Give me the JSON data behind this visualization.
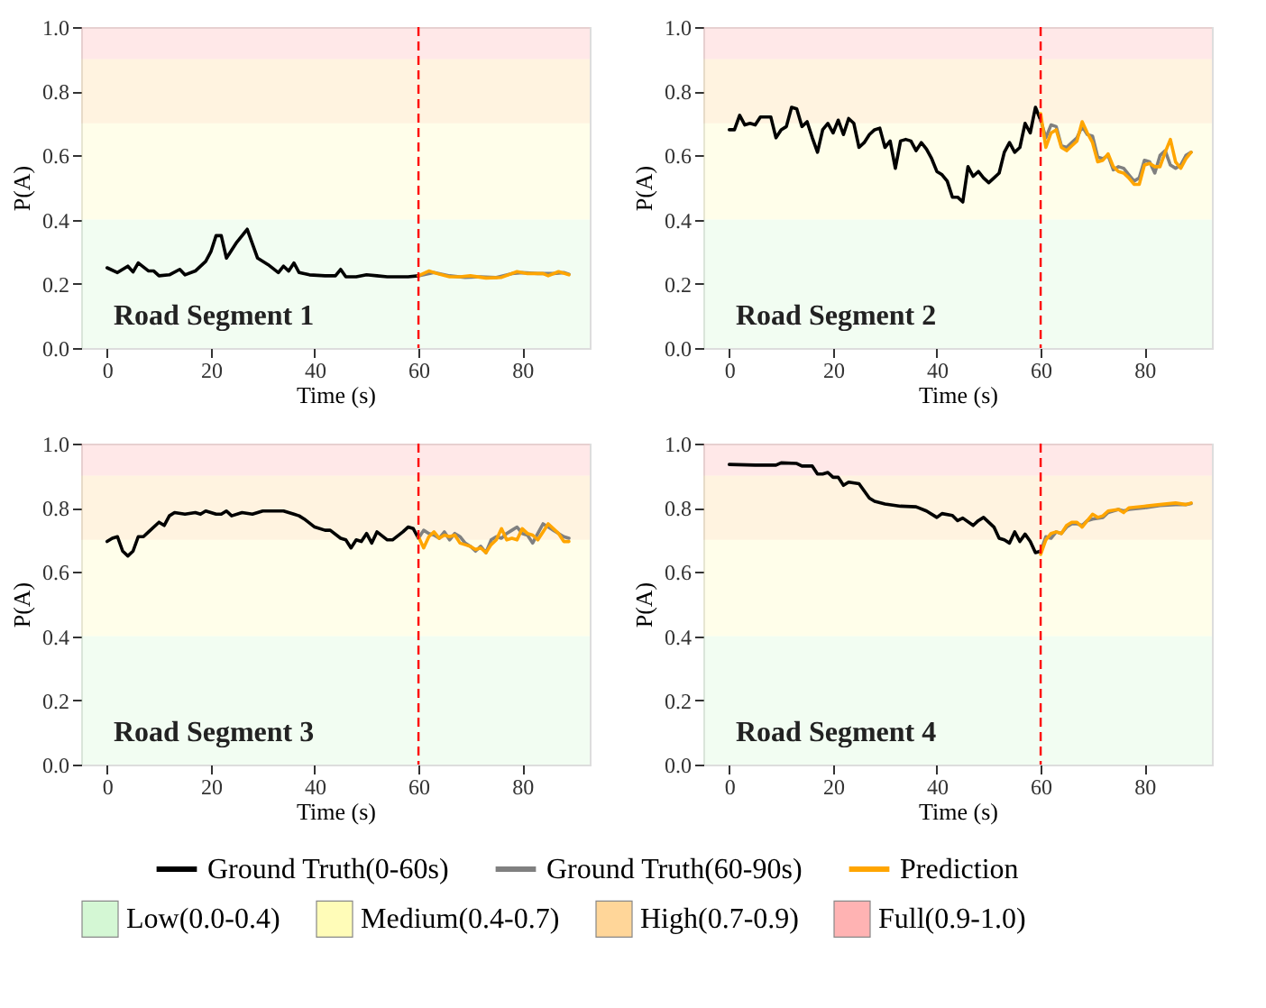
{
  "chart_data": [
    {
      "type": "line",
      "xlabel": "Time (s)",
      "ylabel": "P(A)",
      "annotations": [
        "Road Segment 1"
      ],
      "xlim": [
        -5,
        93
      ],
      "xticks": [
        0,
        20,
        40,
        60,
        80
      ],
      "ylim": [
        0,
        1
      ],
      "yticks": [
        {
          "value": 0,
          "label": "0.0"
        },
        {
          "value": 0.2,
          "label": "0.2"
        },
        {
          "value": 0.4,
          "label": "0.4"
        },
        {
          "value": 0.6,
          "label": "0.6"
        },
        {
          "value": 0.8,
          "label": "0.8"
        },
        {
          "value": 1,
          "label": "1.0"
        }
      ],
      "bands": [
        {
          "axis": "y",
          "from": 0,
          "to": 0.4,
          "color": "#d4f7d4"
        },
        {
          "axis": "y",
          "from": 0.4,
          "to": 0.7,
          "color": "#fffcb8"
        },
        {
          "axis": "y",
          "from": 0.7,
          "to": 0.9,
          "color": "#ffd699"
        },
        {
          "axis": "y",
          "from": 0.9,
          "to": 1,
          "color": "#ffb3b3"
        }
      ],
      "ref_lines": [
        {
          "axis": "x",
          "value": 60,
          "color": "#ff0000",
          "line_style": "dashed"
        }
      ],
      "series": [
        {
          "color": "#000000",
          "x": [
            0,
            2,
            4,
            5,
            6,
            8,
            9,
            10,
            12,
            14,
            15,
            17,
            19,
            20,
            21,
            22,
            23,
            25,
            27,
            29,
            31,
            33,
            34,
            35,
            36,
            37,
            39,
            42,
            44,
            45,
            46,
            48,
            50,
            52,
            54,
            56,
            58,
            60
          ],
          "values": [
            0.25,
            0.235,
            0.255,
            0.237,
            0.265,
            0.24,
            0.24,
            0.225,
            0.228,
            0.245,
            0.228,
            0.24,
            0.27,
            0.3,
            0.35,
            0.35,
            0.28,
            0.33,
            0.37,
            0.28,
            0.26,
            0.235,
            0.255,
            0.24,
            0.265,
            0.235,
            0.228,
            0.225,
            0.225,
            0.245,
            0.222,
            0.222,
            0.228,
            0.225,
            0.222,
            0.222,
            0.222,
            0.225
          ]
        },
        {
          "color": "#808080",
          "x": [
            60,
            63,
            66,
            69,
            72,
            75,
            78,
            80,
            83,
            86,
            88,
            89
          ],
          "values": [
            0.225,
            0.235,
            0.225,
            0.22,
            0.222,
            0.22,
            0.232,
            0.235,
            0.232,
            0.232,
            0.235,
            0.23
          ]
        },
        {
          "color": "#ffa500",
          "x": [
            60,
            62,
            64,
            66,
            68,
            70,
            73,
            76,
            79,
            81,
            84,
            85,
            87,
            89
          ],
          "values": [
            0.225,
            0.24,
            0.23,
            0.222,
            0.222,
            0.225,
            0.218,
            0.22,
            0.238,
            0.232,
            0.232,
            0.225,
            0.238,
            0.228
          ]
        }
      ]
    },
    {
      "type": "line",
      "xlabel": "Time (s)",
      "ylabel": "P(A)",
      "annotations": [
        "Road Segment 2"
      ],
      "xlim": [
        -5,
        93
      ],
      "xticks": [
        0,
        20,
        40,
        60,
        80
      ],
      "ylim": [
        0,
        1
      ],
      "yticks": [
        {
          "value": 0,
          "label": "0.0"
        },
        {
          "value": 0.2,
          "label": "0.2"
        },
        {
          "value": 0.4,
          "label": "0.4"
        },
        {
          "value": 0.6,
          "label": "0.6"
        },
        {
          "value": 0.8,
          "label": "0.8"
        },
        {
          "value": 1,
          "label": "1.0"
        }
      ],
      "bands": [
        {
          "axis": "y",
          "from": 0,
          "to": 0.4,
          "color": "#d4f7d4"
        },
        {
          "axis": "y",
          "from": 0.4,
          "to": 0.7,
          "color": "#fffcb8"
        },
        {
          "axis": "y",
          "from": 0.7,
          "to": 0.9,
          "color": "#ffd699"
        },
        {
          "axis": "y",
          "from": 0.9,
          "to": 1,
          "color": "#ffb3b3"
        }
      ],
      "ref_lines": [
        {
          "axis": "x",
          "value": 60,
          "color": "#ff0000",
          "line_style": "dashed"
        }
      ],
      "series": [
        {
          "color": "#000000",
          "x": [
            0,
            1,
            2,
            3,
            4,
            5,
            6,
            8,
            9,
            10,
            11,
            12,
            13,
            14,
            15,
            16,
            17,
            18,
            19,
            20,
            21,
            22,
            23,
            24,
            25,
            26,
            27,
            28,
            29,
            30,
            31,
            32,
            33,
            34,
            35,
            36,
            37,
            38,
            39,
            40,
            41,
            42,
            43,
            44,
            45,
            46,
            47,
            48,
            49,
            50,
            51,
            52,
            53,
            54,
            55,
            56,
            57,
            58,
            59,
            60
          ],
          "values": [
            0.68,
            0.68,
            0.725,
            0.695,
            0.7,
            0.695,
            0.72,
            0.72,
            0.655,
            0.68,
            0.69,
            0.75,
            0.745,
            0.69,
            0.705,
            0.655,
            0.61,
            0.68,
            0.7,
            0.67,
            0.71,
            0.665,
            0.715,
            0.7,
            0.625,
            0.64,
            0.665,
            0.68,
            0.685,
            0.625,
            0.645,
            0.56,
            0.645,
            0.65,
            0.645,
            0.615,
            0.64,
            0.62,
            0.59,
            0.55,
            0.54,
            0.52,
            0.47,
            0.47,
            0.455,
            0.565,
            0.535,
            0.55,
            0.53,
            0.515,
            0.53,
            0.545,
            0.61,
            0.64,
            0.61,
            0.625,
            0.7,
            0.67,
            0.75,
            0.71
          ]
        },
        {
          "color": "#808080",
          "x": [
            60,
            61,
            62,
            63,
            64,
            65,
            66,
            67,
            68,
            69,
            70,
            71,
            72,
            73,
            74,
            75,
            76,
            77,
            78,
            79,
            80,
            81,
            82,
            83,
            84,
            85,
            86,
            87,
            88,
            89
          ],
          "values": [
            0.71,
            0.655,
            0.695,
            0.69,
            0.63,
            0.625,
            0.64,
            0.655,
            0.69,
            0.665,
            0.66,
            0.595,
            0.59,
            0.6,
            0.555,
            0.565,
            0.56,
            0.54,
            0.52,
            0.53,
            0.585,
            0.58,
            0.545,
            0.6,
            0.615,
            0.57,
            0.56,
            0.57,
            0.6,
            0.61
          ]
        },
        {
          "color": "#ffa500",
          "x": [
            60,
            61,
            62,
            63,
            64,
            65,
            66,
            67,
            68,
            69,
            70,
            71,
            72,
            73,
            74,
            75,
            76,
            77,
            78,
            79,
            80,
            81,
            82,
            83,
            84,
            85,
            86,
            87,
            88,
            89
          ],
          "values": [
            0.73,
            0.625,
            0.67,
            0.68,
            0.625,
            0.615,
            0.63,
            0.645,
            0.705,
            0.67,
            0.64,
            0.58,
            0.585,
            0.605,
            0.565,
            0.55,
            0.545,
            0.53,
            0.51,
            0.51,
            0.57,
            0.575,
            0.565,
            0.565,
            0.61,
            0.65,
            0.58,
            0.56,
            0.59,
            0.61
          ]
        }
      ]
    },
    {
      "type": "line",
      "xlabel": "Time (s)",
      "ylabel": "P(A)",
      "annotations": [
        "Road Segment 3"
      ],
      "xlim": [
        -5,
        93
      ],
      "xticks": [
        0,
        20,
        40,
        60,
        80
      ],
      "ylim": [
        0,
        1
      ],
      "yticks": [
        {
          "value": 0,
          "label": "0.0"
        },
        {
          "value": 0.2,
          "label": "0.2"
        },
        {
          "value": 0.4,
          "label": "0.4"
        },
        {
          "value": 0.6,
          "label": "0.6"
        },
        {
          "value": 0.8,
          "label": "0.8"
        },
        {
          "value": 1,
          "label": "1.0"
        }
      ],
      "bands": [
        {
          "axis": "y",
          "from": 0,
          "to": 0.4,
          "color": "#d4f7d4"
        },
        {
          "axis": "y",
          "from": 0.4,
          "to": 0.7,
          "color": "#fffcb8"
        },
        {
          "axis": "y",
          "from": 0.7,
          "to": 0.9,
          "color": "#ffd699"
        },
        {
          "axis": "y",
          "from": 0.9,
          "to": 1,
          "color": "#ffb3b3"
        }
      ],
      "ref_lines": [
        {
          "axis": "x",
          "value": 60,
          "color": "#ff0000",
          "line_style": "dashed"
        }
      ],
      "series": [
        {
          "color": "#000000",
          "x": [
            0,
            1,
            2,
            3,
            4,
            5,
            6,
            7,
            8,
            10,
            11,
            12,
            13,
            15,
            17,
            18,
            19,
            21,
            22,
            23,
            24,
            26,
            28,
            30,
            32,
            34,
            36,
            37,
            38,
            40,
            42,
            43,
            45,
            46,
            47,
            48,
            49,
            50,
            51,
            52,
            54,
            55,
            57,
            58,
            59,
            60
          ],
          "values": [
            0.695,
            0.705,
            0.71,
            0.665,
            0.65,
            0.665,
            0.71,
            0.71,
            0.725,
            0.755,
            0.745,
            0.775,
            0.785,
            0.78,
            0.785,
            0.78,
            0.79,
            0.78,
            0.78,
            0.79,
            0.775,
            0.785,
            0.78,
            0.79,
            0.79,
            0.79,
            0.78,
            0.775,
            0.765,
            0.74,
            0.73,
            0.73,
            0.705,
            0.7,
            0.675,
            0.7,
            0.695,
            0.72,
            0.69,
            0.725,
            0.7,
            0.7,
            0.725,
            0.74,
            0.735,
            0.705
          ]
        },
        {
          "color": "#808080",
          "x": [
            60,
            61,
            62,
            63,
            64,
            65,
            66,
            67,
            68,
            69,
            70,
            71,
            72,
            73,
            74,
            75,
            76,
            77,
            78,
            79,
            80,
            81,
            82,
            83,
            84,
            85,
            86,
            87,
            88,
            89
          ],
          "values": [
            0.705,
            0.73,
            0.72,
            0.715,
            0.705,
            0.725,
            0.7,
            0.72,
            0.71,
            0.69,
            0.68,
            0.665,
            0.68,
            0.66,
            0.7,
            0.71,
            0.705,
            0.72,
            0.73,
            0.74,
            0.72,
            0.715,
            0.69,
            0.72,
            0.75,
            0.74,
            0.73,
            0.72,
            0.71,
            0.705
          ]
        },
        {
          "color": "#ffa500",
          "x": [
            60,
            61,
            62,
            63,
            64,
            65,
            66,
            67,
            68,
            69,
            70,
            71,
            72,
            73,
            74,
            75,
            76,
            77,
            78,
            79,
            80,
            81,
            82,
            83,
            84,
            85,
            86,
            87,
            88,
            89
          ],
          "values": [
            0.71,
            0.675,
            0.71,
            0.725,
            0.705,
            0.715,
            0.71,
            0.715,
            0.69,
            0.685,
            0.68,
            0.67,
            0.675,
            0.66,
            0.685,
            0.7,
            0.735,
            0.7,
            0.705,
            0.7,
            0.735,
            0.72,
            0.715,
            0.7,
            0.725,
            0.75,
            0.735,
            0.72,
            0.695,
            0.695
          ]
        }
      ]
    },
    {
      "type": "line",
      "xlabel": "Time (s)",
      "ylabel": "P(A)",
      "annotations": [
        "Road Segment 4"
      ],
      "legend": "bottom",
      "xlim": [
        -5,
        93
      ],
      "xticks": [
        0,
        20,
        40,
        60,
        80
      ],
      "ylim": [
        0,
        1
      ],
      "yticks": [
        {
          "value": 0,
          "label": "0.0"
        },
        {
          "value": 0.2,
          "label": "0.2"
        },
        {
          "value": 0.4,
          "label": "0.4"
        },
        {
          "value": 0.6,
          "label": "0.6"
        },
        {
          "value": 0.8,
          "label": "0.8"
        },
        {
          "value": 1,
          "label": "1.0"
        }
      ],
      "bands": [
        {
          "axis": "y",
          "from": 0,
          "to": 0.4,
          "label": "Low(0.0-0.4)",
          "color": "#d4f7d4"
        },
        {
          "axis": "y",
          "from": 0.4,
          "to": 0.7,
          "label": "Medium(0.4-0.7)",
          "color": "#fffcb8"
        },
        {
          "axis": "y",
          "from": 0.7,
          "to": 0.9,
          "label": "High(0.7-0.9)",
          "color": "#ffd699"
        },
        {
          "axis": "y",
          "from": 0.9,
          "to": 1,
          "label": "Full(0.9-1.0)",
          "color": "#ffb3b3"
        }
      ],
      "ref_lines": [
        {
          "axis": "x",
          "value": 60,
          "color": "#ff0000",
          "line_style": "dashed"
        }
      ],
      "series": [
        {
          "name": "Ground Truth(0-60s)",
          "color": "#000000",
          "x": [
            0,
            5,
            9,
            10,
            13,
            14,
            16,
            17,
            18,
            19,
            20,
            21,
            22,
            23,
            25,
            27,
            28,
            30,
            33,
            36,
            38,
            40,
            41,
            43,
            44,
            45,
            47,
            48,
            49,
            51,
            52,
            53,
            54,
            55,
            56,
            57,
            58,
            59,
            60
          ],
          "values": [
            0.935,
            0.933,
            0.933,
            0.94,
            0.938,
            0.93,
            0.93,
            0.905,
            0.905,
            0.91,
            0.895,
            0.895,
            0.87,
            0.88,
            0.875,
            0.83,
            0.82,
            0.812,
            0.805,
            0.803,
            0.79,
            0.77,
            0.782,
            0.776,
            0.76,
            0.768,
            0.745,
            0.76,
            0.77,
            0.74,
            0.705,
            0.7,
            0.69,
            0.725,
            0.695,
            0.718,
            0.695,
            0.66,
            0.665
          ]
        },
        {
          "name": "Ground Truth(60-90s)",
          "color": "#808080",
          "x": [
            60,
            61,
            62,
            63,
            64,
            65,
            66,
            67,
            68,
            69,
            70,
            72,
            73,
            75,
            76,
            77,
            80,
            83,
            86,
            88,
            89
          ],
          "values": [
            0.665,
            0.71,
            0.705,
            0.725,
            0.72,
            0.74,
            0.75,
            0.75,
            0.745,
            0.76,
            0.765,
            0.77,
            0.785,
            0.795,
            0.79,
            0.795,
            0.8,
            0.807,
            0.81,
            0.81,
            0.813
          ]
        },
        {
          "name": "Prediction",
          "color": "#ffa500",
          "x": [
            60,
            61,
            62,
            63,
            64,
            65,
            66,
            67,
            68,
            69,
            70,
            71,
            72,
            73,
            75,
            76,
            77,
            80,
            83,
            86,
            88,
            89
          ],
          "values": [
            0.655,
            0.7,
            0.72,
            0.725,
            0.72,
            0.745,
            0.755,
            0.755,
            0.74,
            0.76,
            0.78,
            0.77,
            0.775,
            0.79,
            0.795,
            0.785,
            0.8,
            0.805,
            0.81,
            0.815,
            0.81,
            0.815
          ]
        }
      ]
    }
  ]
}
